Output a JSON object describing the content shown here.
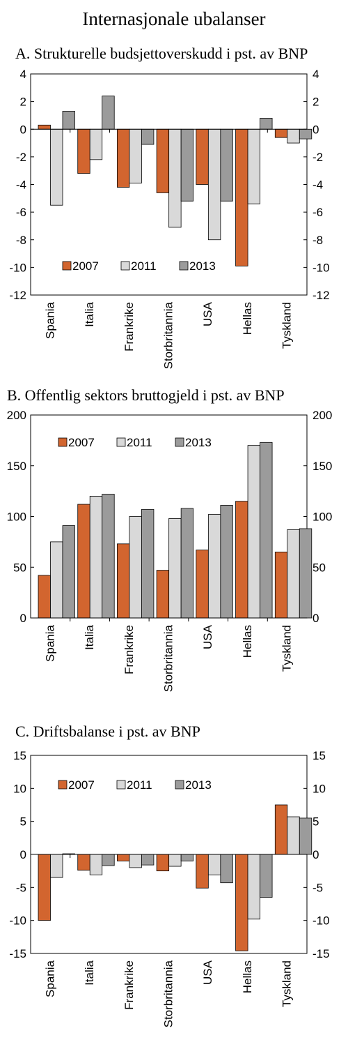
{
  "figure": {
    "title": "Internasjonale ubalanser"
  },
  "legend": [
    {
      "name": "2007",
      "color": "#d2652f"
    },
    {
      "name": "2011",
      "color": "#d9d9d9"
    },
    {
      "name": "2013",
      "color": "#9b9b9b"
    }
  ],
  "chart_data": [
    {
      "type": "bar",
      "title": "A.  Strukturelle budsjettoverskudd i pst. av BNP",
      "categories": [
        "Spania",
        "Italia",
        "Frankrike",
        "Storbritannia",
        "USA",
        "Hellas",
        "Tyskland"
      ],
      "series": [
        {
          "name": "2007",
          "values": [
            0.3,
            -3.2,
            -4.2,
            -4.6,
            -4.0,
            -9.9,
            -0.6
          ]
        },
        {
          "name": "2011",
          "values": [
            -5.5,
            -2.2,
            -3.9,
            -7.1,
            -8.0,
            -5.4,
            -1.0
          ]
        },
        {
          "name": "2013",
          "values": [
            1.3,
            2.4,
            -1.1,
            -5.2,
            -5.2,
            0.8,
            -0.7
          ]
        }
      ],
      "ylim": [
        -12,
        4
      ],
      "yticks": [
        4,
        2,
        0,
        -2,
        -4,
        -6,
        -8,
        -10,
        -12
      ],
      "legend_position": "bottom-left",
      "grid": false
    },
    {
      "type": "bar",
      "title": "B.   Offentlig sektors bruttogjeld i pst. av BNP",
      "categories": [
        "Spania",
        "Italia",
        "Frankrike",
        "Storbritannia",
        "USA",
        "Hellas",
        "Tyskland"
      ],
      "series": [
        {
          "name": "2007",
          "values": [
            42,
            112,
            73,
            47,
            67,
            115,
            65
          ]
        },
        {
          "name": "2011",
          "values": [
            75,
            120,
            100,
            98,
            102,
            170,
            87
          ]
        },
        {
          "name": "2013",
          "values": [
            91,
            122,
            107,
            108,
            111,
            173,
            88
          ]
        }
      ],
      "ylim": [
        0,
        200
      ],
      "yticks": [
        200,
        150,
        100,
        50,
        0
      ],
      "legend_position": "top-left",
      "grid": false
    },
    {
      "type": "bar",
      "title": "C.  Driftsbalanse i pst. av BNP",
      "categories": [
        "Spania",
        "Italia",
        "Frankrike",
        "Storbritannia",
        "USA",
        "Hellas",
        "Tyskland"
      ],
      "series": [
        {
          "name": "2007",
          "values": [
            -10.0,
            -2.4,
            -1.0,
            -2.5,
            -5.1,
            -14.6,
            7.5
          ]
        },
        {
          "name": "2011",
          "values": [
            -3.5,
            -3.1,
            -2.0,
            -1.8,
            -3.1,
            -9.8,
            5.7
          ]
        },
        {
          "name": "2013",
          "values": [
            0.1,
            -1.7,
            -1.6,
            -1.0,
            -4.3,
            -6.5,
            5.5
          ]
        }
      ],
      "ylim": [
        -15,
        15
      ],
      "yticks": [
        15,
        10,
        5,
        0,
        -5,
        -10,
        -15
      ],
      "legend_position": "top-left",
      "grid": false
    }
  ]
}
